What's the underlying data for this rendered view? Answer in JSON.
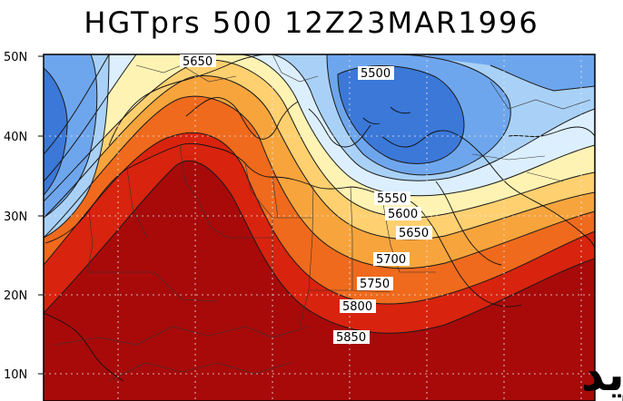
{
  "title": "HGTprs 500 12Z23MAR1996",
  "y_ticks": [
    "50N",
    "40N",
    "30N",
    "20N",
    "10N"
  ],
  "contour_labels": [
    "5650",
    "5500",
    "5550",
    "5600",
    "5650",
    "5700",
    "5750",
    "5800",
    "5850"
  ],
  "watermark": "أبوزيد",
  "colors": {
    "deep_blue": "#3b78d8",
    "blue": "#6ea6ee",
    "light_blue": "#a9d1f7",
    "pale_blue": "#dcefff",
    "pale_yellow": "#fff3b3",
    "yellow": "#ffd070",
    "orange": "#f7a43c",
    "dark_orange": "#ef6a1c",
    "red": "#d8230e",
    "dark_red": "#a80a0a"
  }
}
